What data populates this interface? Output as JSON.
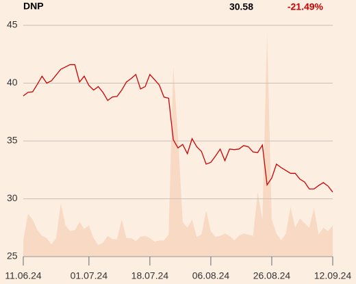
{
  "header": {
    "symbol": "DNP",
    "last": "30.58",
    "change": "-21.49%"
  },
  "chart_data": {
    "type": "line",
    "categories": [
      "11.06.24",
      null,
      null,
      null,
      null,
      null,
      null,
      null,
      null,
      null,
      null,
      null,
      null,
      null,
      "01.07.24",
      null,
      null,
      null,
      null,
      null,
      null,
      null,
      null,
      null,
      null,
      null,
      null,
      "18.07.24",
      null,
      null,
      null,
      null,
      null,
      null,
      null,
      null,
      null,
      null,
      null,
      null,
      "06.08.24",
      null,
      null,
      null,
      null,
      null,
      null,
      null,
      null,
      null,
      null,
      null,
      null,
      "26.08.24",
      null,
      null,
      null,
      null,
      null,
      null,
      null,
      null,
      null,
      null,
      null,
      null,
      "12.09.24"
    ],
    "line": {
      "color": "#cc0000",
      "values": [
        38.9,
        39.2,
        39.25,
        39.9,
        40.6,
        40.0,
        40.2,
        40.7,
        41.2,
        41.4,
        41.6,
        41.6,
        40.1,
        40.6,
        39.8,
        39.4,
        39.7,
        39.2,
        38.5,
        38.8,
        38.85,
        39.4,
        40.1,
        40.4,
        40.75,
        39.5,
        39.7,
        40.75,
        40.3,
        39.85,
        38.8,
        38.7,
        35.1,
        34.4,
        34.7,
        33.9,
        35.2,
        34.5,
        34.1,
        33.0,
        33.15,
        33.7,
        34.3,
        33.3,
        34.3,
        34.25,
        34.3,
        34.6,
        34.5,
        34.05,
        34.0,
        34.65,
        31.2,
        31.8,
        33.0,
        32.7,
        32.45,
        32.2,
        32.2,
        31.7,
        31.45,
        30.85,
        30.85,
        31.15,
        31.4,
        31.1,
        30.58
      ]
    },
    "area": {
      "color": "#f8d9c4",
      "values": [
        26.4,
        28.7,
        28.2,
        27.3,
        26.8,
        26.6,
        26.05,
        26.6,
        29.6,
        27.7,
        27.2,
        27.3,
        28.0,
        27.4,
        27.7,
        26.6,
        26.0,
        26.2,
        26.8,
        26.5,
        26.5,
        28.2,
        26.6,
        26.6,
        26.35,
        26.7,
        26.8,
        26.6,
        26.3,
        26.4,
        26.4,
        26.9,
        41.4,
        35.4,
        28.0,
        27.5,
        28.2,
        26.7,
        26.9,
        29.0,
        27.2,
        26.7,
        26.8,
        27.0,
        26.8,
        26.4,
        26.8,
        27.0,
        26.9,
        26.8,
        30.6,
        28.2,
        44.35,
        28.2,
        27.0,
        26.4,
        27.0,
        29.3,
        27.5,
        28.3,
        27.9,
        27.5,
        29.2,
        26.9,
        27.5,
        27.2,
        27.7
      ]
    },
    "ylim": [
      25,
      45
    ],
    "yticks": [
      25,
      30,
      35,
      40,
      45
    ],
    "grid": true
  }
}
